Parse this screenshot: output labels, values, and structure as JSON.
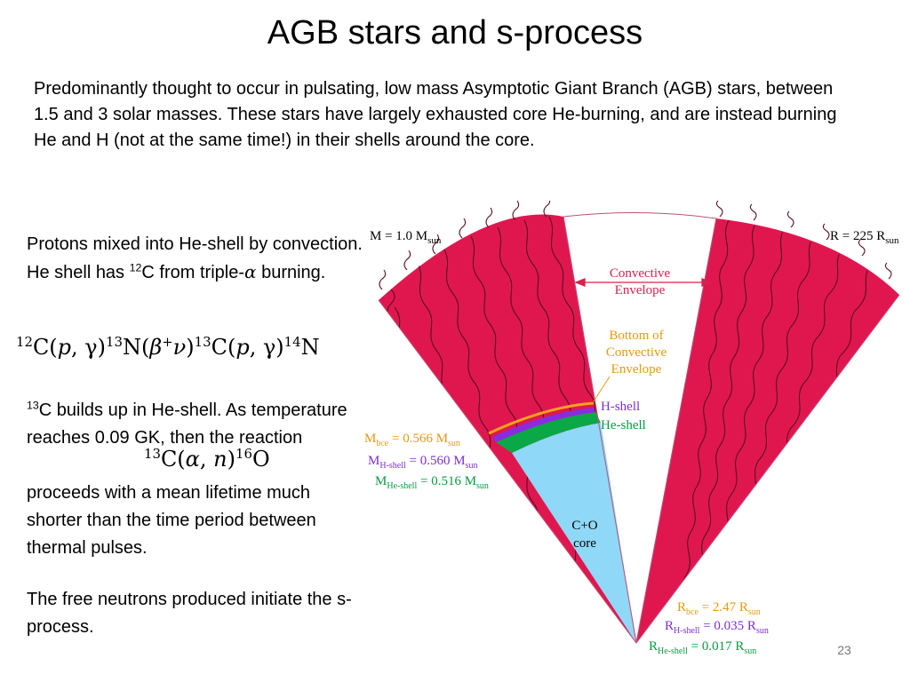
{
  "slide": {
    "title": "AGB stars and s-process",
    "intro": "Predominantly thought to occur in pulsating, low mass Asymptotic Giant Branch (AGB) stars, between 1.5 and 3 solar masses.  These stars have largely exhausted core He-burning, and are instead burning He and H (not at the same time!) in their shells around the core.",
    "p1_text1": "Protons mixed into He-shell by convection.  He shell has ",
    "p1_sup": "12",
    "p1_text2": "C from triple-",
    "p1_alpha": "α",
    "p1_text3": " burning.",
    "p2_sup": "13",
    "p2_text1": "C builds up in He-shell.  As temperature reaches 0.09 GK, then the reaction",
    "p2_text2": "proceeds with a mean lifetime much shorter than the time period between thermal pulses.",
    "p3_text": "The free neutrons produced initiate the s-process.",
    "page_number": "23"
  },
  "equations": {
    "eq1": {
      "s12": "12",
      "c1": "C(",
      "p1": "p",
      "g1": ", γ)",
      "s13a": "13",
      "n1": "N(",
      "beta": "β",
      "plus": "+",
      "nu": "ν",
      "close": ")",
      "s13b": "13",
      "c2": "C(",
      "p2": "p",
      "g2": ", γ)",
      "s14": "14",
      "n2": "N"
    },
    "eq2": {
      "s13": "13",
      "c": "C(",
      "alpha": "α",
      "comma": ", ",
      "n": "n",
      "close": ")",
      "s16": "16",
      "o": "O"
    }
  },
  "diagram": {
    "mass_label": "M = 1.0 M",
    "mass_sub": "sun",
    "radius_label": "R = 225 R",
    "radius_sub": "sun",
    "convective_1": "Convective",
    "convective_2": "Envelope",
    "bottom_1": "Bottom of",
    "bottom_2": "Convective",
    "bottom_3": "Envelope",
    "h_shell": "H-shell",
    "he_shell": "He-shell",
    "core_1": "C+O",
    "core_2": "core",
    "m_bce": {
      "main": "M",
      "sub": "bce",
      "val": " = 0.566 M",
      "unit": "sun"
    },
    "m_hshell": {
      "main": "M",
      "sub": "H-shell",
      "val": " = 0.560 M",
      "unit": "sun"
    },
    "m_heshell": {
      "main": "M",
      "sub": "He-shell",
      "val": " = 0.516 M",
      "unit": "sun"
    },
    "r_bce": {
      "main": "R",
      "sub": "bce",
      "val": " = 2.47 R",
      "unit": "sun"
    },
    "r_hshell": {
      "main": "R",
      "sub": "H-shell",
      "val": " = 0.035 R",
      "unit": "sun"
    },
    "r_heshell": {
      "main": "R",
      "sub": "He-shell",
      "val": " = 0.017 R",
      "unit": "sun"
    },
    "colors": {
      "envelope": "#e0174e",
      "core": "#8fd8f7",
      "he_shell": "#0aa846",
      "h_shell": "#8a2be2",
      "bce": "#f6a21e",
      "outline": "#c0507a",
      "label_red": "#d6224e",
      "label_orange": "#e59a10",
      "label_purple": "#7b2fd6",
      "label_green": "#0a9a40"
    }
  }
}
